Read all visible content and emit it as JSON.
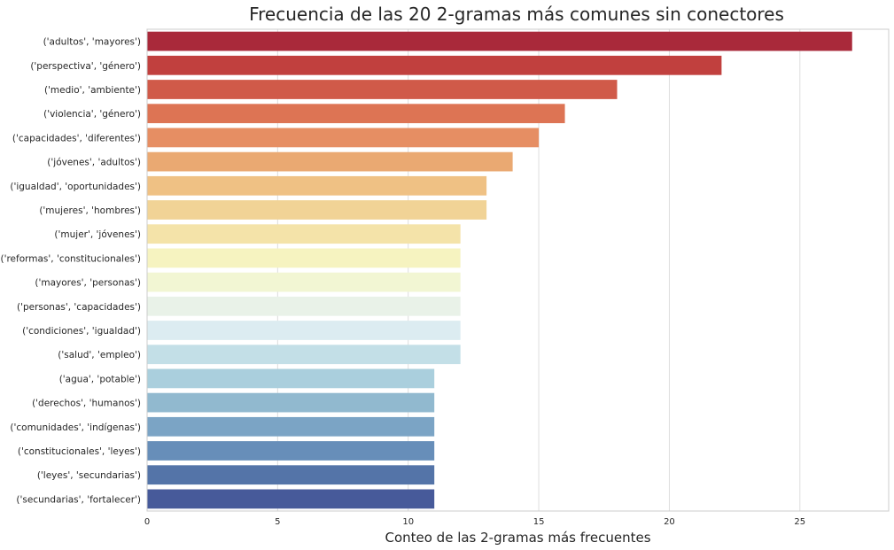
{
  "chart_data": {
    "type": "bar",
    "orientation": "horizontal",
    "title": "Frecuencia de las 20 2-gramas más comunes sin conectores",
    "xlabel": "Conteo de las 2-gramas más frecuentes",
    "ylabel": "",
    "xlim": [
      0,
      28.4
    ],
    "xticks": [
      0,
      5,
      10,
      15,
      20,
      25
    ],
    "grid": "vertical",
    "categories": [
      "('adultos', 'mayores')",
      "('perspectiva', 'género')",
      "('medio', 'ambiente')",
      "('violencia', 'género')",
      "('capacidades', 'diferentes')",
      "('jóvenes', 'adultos')",
      "('igualdad', 'oportunidades')",
      "('mujeres', 'hombres')",
      "('mujer', 'jóvenes')",
      "('reformas', 'constitucionales')",
      "('mayores', 'personas')",
      "('personas', 'capacidades')",
      "('condiciones', 'igualdad')",
      "('salud', 'empleo')",
      "('agua', 'potable')",
      "('derechos', 'humanos')",
      "('comunidades', 'indígenas')",
      "('constitucionales', 'leyes')",
      "('leyes', 'secundarias')",
      "('secundarias', 'fortalecer')"
    ],
    "values": [
      27,
      22,
      18,
      16,
      15,
      14,
      13,
      13,
      12,
      12,
      12,
      12,
      12,
      12,
      11,
      11,
      11,
      11,
      11,
      11
    ],
    "colors": [
      "#a9293a",
      "#c1403e",
      "#d05a49",
      "#dd7454",
      "#e68e63",
      "#eaa972",
      "#efc184",
      "#f1d396",
      "#f4e3a9",
      "#f6f3c0",
      "#f2f6d3",
      "#e9f2e8",
      "#dcecf1",
      "#c3dfe7",
      "#aacfdd",
      "#91b9cf",
      "#7ba4c5",
      "#678eb9",
      "#5474a8",
      "#475a9a"
    ]
  }
}
